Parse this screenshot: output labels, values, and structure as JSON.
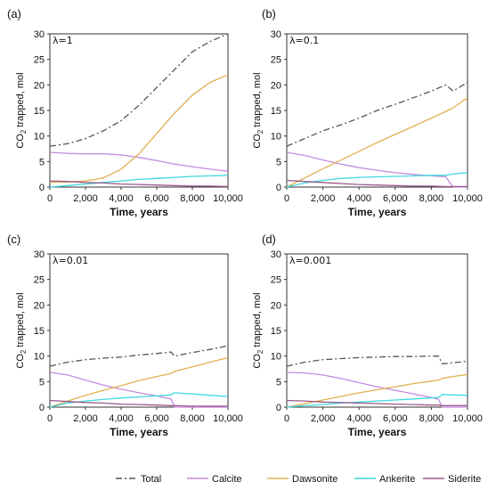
{
  "figure": {
    "legend": [
      {
        "name": "Total",
        "color": "#555555",
        "dash": "dashdot"
      },
      {
        "name": "Calcite",
        "color": "#c38be0",
        "dash": "solid"
      },
      {
        "name": "Dawsonite",
        "color": "#e0b050",
        "dash": "solid"
      },
      {
        "name": "Ankerite",
        "color": "#40d8e0",
        "dash": "solid"
      },
      {
        "name": "Siderite",
        "color": "#9a5a8a",
        "dash": "solid"
      }
    ]
  },
  "chart_data": [
    {
      "type": "line",
      "panel_label": "(a)",
      "annotation": "λ=1",
      "xlabel": "Time, years",
      "ylabel": "CO2 trapped, mol",
      "xlim": [
        0,
        10000
      ],
      "ylim": [
        0,
        30
      ],
      "xticks": [
        "0",
        "2,000",
        "4,000",
        "6,000",
        "8,000",
        "10,000"
      ],
      "yticks": [
        "0",
        "5",
        "10",
        "15",
        "20",
        "25",
        "30"
      ],
      "x": [
        0,
        1000,
        2000,
        3000,
        4000,
        5000,
        6000,
        7000,
        8000,
        9000,
        10000
      ],
      "series": [
        {
          "name": "Total",
          "values": [
            8.0,
            8.5,
            9.5,
            11.0,
            13.0,
            16.0,
            19.5,
            23.0,
            26.5,
            28.5,
            30.0
          ]
        },
        {
          "name": "Calcite",
          "values": [
            6.8,
            6.6,
            6.5,
            6.5,
            6.3,
            5.8,
            5.2,
            4.5,
            4.0,
            3.5,
            3.1
          ]
        },
        {
          "name": "Dawsonite",
          "values": [
            1.0,
            1.0,
            1.2,
            1.8,
            3.5,
            6.5,
            10.5,
            14.5,
            18.0,
            20.5,
            22.0
          ]
        },
        {
          "name": "Ankerite",
          "values": [
            0.0,
            0.3,
            0.6,
            0.9,
            1.2,
            1.5,
            1.7,
            1.9,
            2.1,
            2.2,
            2.3
          ]
        },
        {
          "name": "Siderite",
          "values": [
            1.2,
            1.1,
            0.9,
            0.8,
            0.6,
            0.5,
            0.4,
            0.3,
            0.2,
            0.2,
            0.1
          ]
        }
      ]
    },
    {
      "type": "line",
      "panel_label": "(b)",
      "annotation": "λ=0.1",
      "xlabel": "Time, years",
      "ylabel": "",
      "xlim": [
        0,
        10000
      ],
      "ylim": [
        0,
        30
      ],
      "xticks": [
        "0",
        "2,000",
        "4,000",
        "6,000",
        "8,000",
        "10,000"
      ],
      "yticks": [
        "0",
        "5",
        "10",
        "15",
        "20",
        "25",
        "30"
      ],
      "x": [
        0,
        1000,
        2000,
        3000,
        4000,
        5000,
        6000,
        7000,
        8000,
        8800,
        9200,
        10000
      ],
      "series": [
        {
          "name": "Total",
          "values": [
            8.0,
            9.5,
            11.0,
            12.2,
            13.5,
            15.0,
            16.2,
            17.5,
            18.8,
            20.0,
            18.8,
            20.5
          ]
        },
        {
          "name": "Calcite",
          "values": [
            6.8,
            6.2,
            5.3,
            4.5,
            3.8,
            3.3,
            2.8,
            2.5,
            2.2,
            2.0,
            0.0,
            0.0
          ]
        },
        {
          "name": "Dawsonite",
          "values": [
            0.0,
            1.8,
            3.6,
            5.3,
            7.0,
            8.7,
            10.3,
            11.9,
            13.5,
            14.8,
            15.5,
            17.5
          ]
        },
        {
          "name": "Ankerite",
          "values": [
            0.0,
            0.8,
            1.3,
            1.7,
            1.9,
            2.0,
            2.1,
            2.2,
            2.3,
            2.3,
            2.6,
            2.8
          ]
        },
        {
          "name": "Siderite",
          "values": [
            1.3,
            1.1,
            0.9,
            0.7,
            0.5,
            0.4,
            0.3,
            0.2,
            0.2,
            0.1,
            0.1,
            0.1
          ]
        }
      ]
    },
    {
      "type": "line",
      "panel_label": "(c)",
      "annotation": "λ=0.01",
      "xlabel": "Time, years",
      "ylabel": "CO2 trapped, mol",
      "xlim": [
        0,
        10000
      ],
      "ylim": [
        0,
        30
      ],
      "xticks": [
        "0",
        "2,000",
        "4,000",
        "6,000",
        "8,000",
        "10,000"
      ],
      "yticks": [
        "0",
        "5",
        "10",
        "15",
        "20",
        "25",
        "30"
      ],
      "x": [
        0,
        1000,
        2000,
        3000,
        4000,
        5000,
        6000,
        6800,
        7000,
        8000,
        9000,
        10000
      ],
      "series": [
        {
          "name": "Total",
          "values": [
            8.0,
            8.8,
            9.3,
            9.6,
            9.8,
            10.2,
            10.5,
            10.8,
            10.0,
            10.7,
            11.3,
            12.0
          ]
        },
        {
          "name": "Calcite",
          "values": [
            6.8,
            6.3,
            5.3,
            4.3,
            3.5,
            2.8,
            2.2,
            1.6,
            0.0,
            0.0,
            0.0,
            0.0
          ]
        },
        {
          "name": "Dawsonite",
          "values": [
            0.0,
            1.2,
            2.3,
            3.3,
            4.2,
            5.2,
            6.0,
            6.6,
            7.0,
            7.9,
            8.8,
            9.7
          ]
        },
        {
          "name": "Ankerite",
          "values": [
            0.0,
            0.8,
            1.2,
            1.5,
            1.8,
            2.0,
            2.2,
            2.4,
            2.8,
            2.6,
            2.3,
            2.1
          ]
        },
        {
          "name": "Siderite",
          "values": [
            1.3,
            1.1,
            0.9,
            0.8,
            0.6,
            0.5,
            0.4,
            0.3,
            0.3,
            0.2,
            0.2,
            0.2
          ]
        }
      ]
    },
    {
      "type": "line",
      "panel_label": "(d)",
      "annotation": "λ=0.001",
      "xlabel": "Time, years",
      "ylabel": "CO2 trapped, mol",
      "xlim": [
        0,
        10000
      ],
      "ylim": [
        0,
        30
      ],
      "xticks": [
        "0",
        "2,000",
        "4,000",
        "6,000",
        "8,000",
        "10,000"
      ],
      "yticks": [
        "0",
        "5",
        "10",
        "15",
        "20",
        "25",
        "30"
      ],
      "x": [
        0,
        1000,
        2000,
        3000,
        4000,
        5000,
        6000,
        7000,
        8000,
        8400,
        8600,
        9000,
        10000
      ],
      "series": [
        {
          "name": "Total",
          "values": [
            8.0,
            8.8,
            9.3,
            9.5,
            9.7,
            9.8,
            9.9,
            9.9,
            10.0,
            10.0,
            8.5,
            8.6,
            9.0
          ]
        },
        {
          "name": "Calcite",
          "values": [
            6.8,
            6.7,
            6.3,
            5.6,
            4.8,
            4.0,
            3.3,
            2.6,
            1.9,
            1.5,
            0.0,
            0.0,
            0.0
          ]
        },
        {
          "name": "Dawsonite",
          "values": [
            0.0,
            0.7,
            1.4,
            2.1,
            2.8,
            3.4,
            4.0,
            4.6,
            5.1,
            5.3,
            5.6,
            5.9,
            6.4
          ]
        },
        {
          "name": "Ankerite",
          "values": [
            0.0,
            0.3,
            0.5,
            0.8,
            1.0,
            1.2,
            1.4,
            1.6,
            1.8,
            1.9,
            2.5,
            2.4,
            2.3
          ]
        },
        {
          "name": "Siderite",
          "values": [
            1.3,
            1.2,
            1.0,
            0.9,
            0.8,
            0.7,
            0.6,
            0.5,
            0.4,
            0.4,
            0.3,
            0.3,
            0.3
          ]
        }
      ]
    }
  ]
}
